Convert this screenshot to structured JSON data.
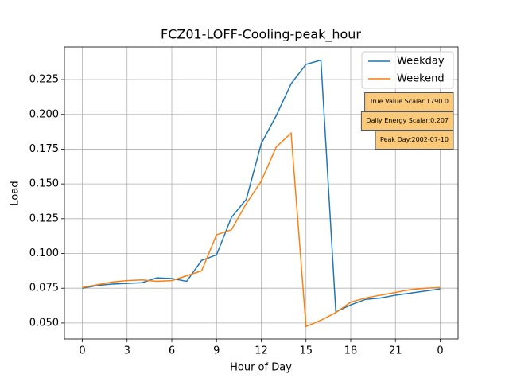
{
  "chart_data": {
    "type": "line",
    "title": "FCZ01-LOFF-Cooling-peak_hour",
    "x_label": "Hour of Day",
    "y_label": "Load",
    "x": [
      0,
      1,
      2,
      3,
      4,
      5,
      6,
      7,
      8,
      9,
      10,
      11,
      12,
      13,
      14,
      15,
      16,
      17,
      18,
      19,
      20,
      21,
      22,
      23,
      24
    ],
    "series": [
      {
        "name": "Weekday",
        "color": "#1f77b4",
        "values": [
          0.075,
          0.077,
          0.078,
          0.0785,
          0.079,
          0.0825,
          0.082,
          0.08,
          0.095,
          0.099,
          0.126,
          0.139,
          0.179,
          0.199,
          0.222,
          0.236,
          0.239,
          0.058,
          0.063,
          0.067,
          0.068,
          0.07,
          0.0715,
          0.073,
          0.0745
        ]
      },
      {
        "name": "Weekend",
        "color": "#ff7f0e",
        "values": [
          0.0755,
          0.0775,
          0.0795,
          0.0805,
          0.081,
          0.08,
          0.0805,
          0.084,
          0.0875,
          0.1135,
          0.117,
          0.136,
          0.152,
          0.1765,
          0.1865,
          0.0475,
          0.052,
          0.0575,
          0.065,
          0.068,
          0.07,
          0.072,
          0.074,
          0.075,
          0.0755
        ]
      }
    ],
    "xlim": [
      -1.2,
      25.2
    ],
    "xticks": [
      0,
      3,
      6,
      9,
      12,
      15,
      18,
      21,
      {
        "value": 24,
        "label": "0"
      }
    ],
    "ylim": [
      0.0385,
      0.2485
    ],
    "yticks": [
      {
        "value": 0.05,
        "label": "0.050"
      },
      0.075,
      {
        "value": 0.1,
        "label": "0.100"
      },
      0.125,
      {
        "value": 0.15,
        "label": "0.150"
      },
      0.175,
      {
        "value": 0.2,
        "label": "0.200"
      },
      0.225
    ],
    "grid": true,
    "legend": "upper right",
    "annotations": [
      "True Value Scalar:1790.0",
      "Daily Energy Scalar:0.207",
      "Peak Day:2002-07-10"
    ]
  }
}
